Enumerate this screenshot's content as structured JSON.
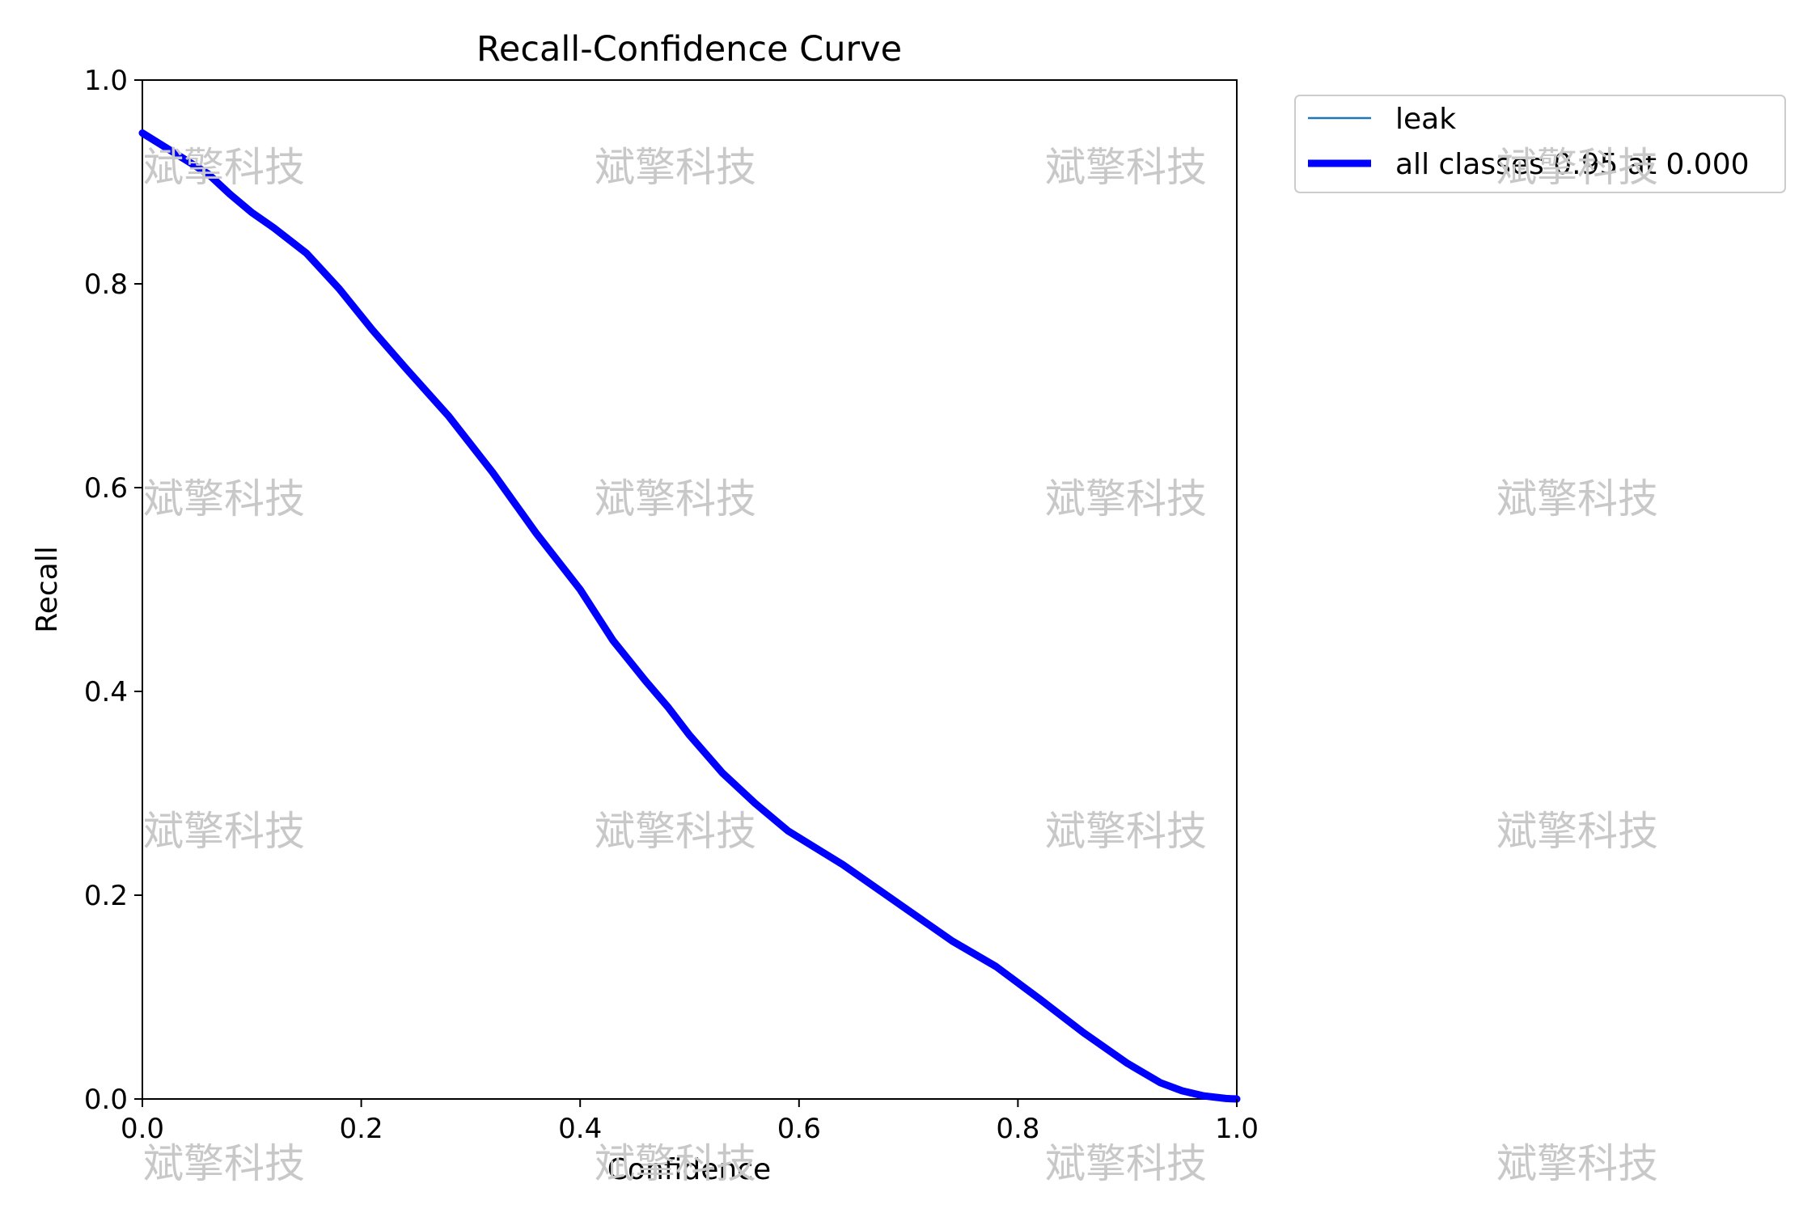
{
  "chart_data": {
    "type": "line",
    "title": "Recall-Confidence Curve",
    "xlabel": "Confidence",
    "ylabel": "Recall",
    "xlim": [
      0,
      1
    ],
    "ylim": [
      0,
      1
    ],
    "xticks": [
      "0.0",
      "0.2",
      "0.4",
      "0.6",
      "0.8",
      "1.0"
    ],
    "yticks": [
      "0.0",
      "0.2",
      "0.4",
      "0.6",
      "0.8",
      "1.0"
    ],
    "grid": false,
    "legend_position": "outside-top-right",
    "series": [
      {
        "name": "leak",
        "color": "#1f77b4",
        "x": [
          0.0,
          0.03,
          0.06,
          0.08,
          0.1,
          0.12,
          0.15,
          0.18,
          0.21,
          0.24,
          0.28,
          0.32,
          0.36,
          0.4,
          0.43,
          0.46,
          0.48,
          0.5,
          0.53,
          0.56,
          0.59,
          0.64,
          0.7,
          0.74,
          0.78,
          0.82,
          0.86,
          0.9,
          0.93,
          0.95,
          0.97,
          0.99,
          1.0
        ],
        "y": [
          0.948,
          0.928,
          0.908,
          0.888,
          0.87,
          0.855,
          0.83,
          0.795,
          0.755,
          0.718,
          0.67,
          0.615,
          0.555,
          0.5,
          0.45,
          0.41,
          0.385,
          0.357,
          0.32,
          0.29,
          0.263,
          0.23,
          0.185,
          0.155,
          0.13,
          0.098,
          0.065,
          0.035,
          0.016,
          0.008,
          0.003,
          0.0005,
          0.0
        ]
      },
      {
        "name": "all classes 0.95 at 0.000",
        "color": "#0000ff",
        "x": [
          0.0,
          0.03,
          0.06,
          0.08,
          0.1,
          0.12,
          0.15,
          0.18,
          0.21,
          0.24,
          0.28,
          0.32,
          0.36,
          0.4,
          0.43,
          0.46,
          0.48,
          0.5,
          0.53,
          0.56,
          0.59,
          0.64,
          0.7,
          0.74,
          0.78,
          0.82,
          0.86,
          0.9,
          0.93,
          0.95,
          0.97,
          0.99,
          1.0
        ],
        "y": [
          0.948,
          0.928,
          0.908,
          0.888,
          0.87,
          0.855,
          0.83,
          0.795,
          0.755,
          0.718,
          0.67,
          0.615,
          0.555,
          0.5,
          0.45,
          0.41,
          0.385,
          0.357,
          0.32,
          0.29,
          0.263,
          0.23,
          0.185,
          0.155,
          0.13,
          0.098,
          0.065,
          0.035,
          0.016,
          0.008,
          0.003,
          0.0005,
          0.0
        ]
      }
    ],
    "watermark": "斌擎科技"
  }
}
